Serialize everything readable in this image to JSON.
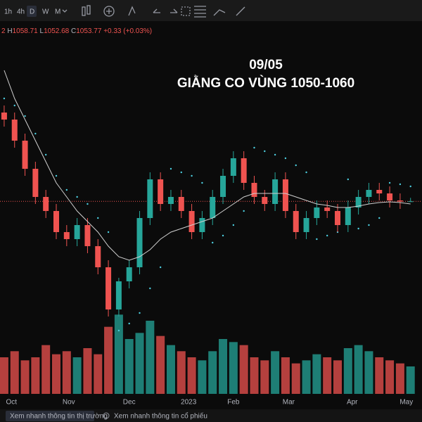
{
  "toolbar": {
    "intervals": [
      "1h",
      "4h",
      "D",
      "W",
      "M"
    ],
    "active_index": 2
  },
  "chart_data": {
    "type": "candlestick",
    "legend": {
      "prefix": "2",
      "high_label": "H",
      "low_label": "L",
      "close_label": "C",
      "change": "+0.33 (+0.03%)"
    },
    "annotation": [
      "09/05",
      "GIẰNG CO VÙNG 1050-1060"
    ],
    "xlim": [
      -0.4,
      40.1
    ],
    "xticks": [
      {
        "value": 0.7,
        "label": "Oct"
      },
      {
        "value": 6.2,
        "label": "Nov"
      },
      {
        "value": 12,
        "label": "Dec"
      },
      {
        "value": 17.7,
        "label": "2023"
      },
      {
        "value": 22,
        "label": "Feb"
      },
      {
        "value": 27.3,
        "label": "Mar"
      },
      {
        "value": 33.4,
        "label": "Apr"
      },
      {
        "value": 38.6,
        "label": "May"
      }
    ],
    "ylim": [
      870,
      1310
    ],
    "open": [
      1180,
      1170,
      1140,
      1100,
      1060,
      1040,
      1010,
      1000,
      1020,
      990,
      960,
      900,
      940,
      960,
      1030,
      1085,
      1050,
      1060,
      1040,
      1010,
      1030,
      1060,
      1090,
      1115,
      1080,
      1060,
      1050,
      1085,
      1040,
      1010,
      1030,
      1045,
      1040,
      1020,
      1045,
      1060,
      1070,
      1065,
      1055,
      1053.44
    ],
    "high": [
      1190,
      1180,
      1150,
      1110,
      1070,
      1050,
      1020,
      1030,
      1030,
      1000,
      970,
      945,
      970,
      1040,
      1095,
      1095,
      1070,
      1070,
      1050,
      1040,
      1070,
      1100,
      1125,
      1125,
      1090,
      1070,
      1095,
      1095,
      1050,
      1040,
      1055,
      1055,
      1050,
      1055,
      1070,
      1080,
      1080,
      1075,
      1065,
      1058.71
    ],
    "low": [
      1160,
      1130,
      1090,
      1050,
      1030,
      1000,
      990,
      990,
      980,
      950,
      890,
      890,
      930,
      950,
      1020,
      1040,
      1040,
      1030,
      1000,
      1000,
      1020,
      1050,
      1080,
      1070,
      1050,
      1040,
      1040,
      1030,
      1000,
      1000,
      1020,
      1030,
      1010,
      1010,
      1035,
      1050,
      1055,
      1045,
      1043,
      1052.68
    ],
    "close": [
      1170,
      1140,
      1100,
      1060,
      1040,
      1010,
      1000,
      1020,
      990,
      960,
      900,
      940,
      960,
      1030,
      1085,
      1050,
      1060,
      1040,
      1010,
      1030,
      1060,
      1090,
      1115,
      1080,
      1060,
      1050,
      1085,
      1040,
      1010,
      1030,
      1045,
      1040,
      1020,
      1045,
      1060,
      1070,
      1065,
      1055,
      1053.44,
      1053.77
    ],
    "ma": [
      1240,
      1200,
      1170,
      1140,
      1110,
      1080,
      1060,
      1040,
      1025,
      1010,
      990,
      975,
      970,
      975,
      985,
      1000,
      1010,
      1015,
      1020,
      1025,
      1030,
      1040,
      1050,
      1060,
      1065,
      1065,
      1065,
      1065,
      1060,
      1055,
      1050,
      1048,
      1045,
      1045,
      1047,
      1050,
      1052,
      1053,
      1052,
      1050
    ],
    "sar": [
      1200,
      1190,
      1175,
      1150,
      1120,
      1090,
      1070,
      1060,
      1050,
      1030,
      1010,
      870,
      880,
      895,
      930,
      960,
      1100,
      1095,
      1090,
      1080,
      995,
      1005,
      1020,
      1040,
      1130,
      1125,
      1120,
      1115,
      1105,
      1095,
      1000,
      1005,
      1010,
      1085,
      1015,
      1020,
      1030,
      1080,
      1078,
      1075
    ],
    "volume": [
      60,
      70,
      55,
      60,
      80,
      65,
      70,
      60,
      75,
      65,
      110,
      130,
      90,
      100,
      120,
      95,
      80,
      70,
      60,
      55,
      70,
      90,
      85,
      80,
      60,
      55,
      70,
      60,
      50,
      55,
      65,
      60,
      55,
      75,
      80,
      70,
      60,
      55,
      50,
      45
    ],
    "volume_lim": [
      0,
      150
    ],
    "up_color": "#26a69a",
    "down_color": "#ef5350",
    "ma_color": "#cfcfcf",
    "sar_color": "#4dd0e1"
  },
  "footer": {
    "tabs": [
      "Xem nhanh thông tin thị trường",
      "Xem nhanh thông tin cổ phiếu"
    ]
  }
}
